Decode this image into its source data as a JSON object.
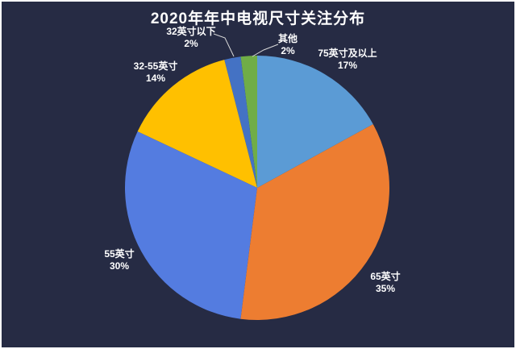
{
  "background": "#262B44",
  "frame_color": "#FFFFFF",
  "text_color": "#FFFFFF",
  "callout_color": "#D9D9D9",
  "chart_data": {
    "type": "pie",
    "title": "2020年年中电视尺寸关注分布",
    "start_angle_deg": 0,
    "direction": "clockwise",
    "legend": "none",
    "labels_position": "outside",
    "units": "percent",
    "segments": [
      {
        "label": "75英寸及以上",
        "value_pct": 17,
        "pct_label": "17%",
        "color": "#5B9BD5"
      },
      {
        "label": "65英寸",
        "value_pct": 35,
        "pct_label": "35%",
        "color": "#ED7D31"
      },
      {
        "label": "55英寸",
        "value_pct": 30,
        "pct_label": "30%",
        "color": "#547CE0"
      },
      {
        "label": "32-55英寸",
        "value_pct": 14,
        "pct_label": "14%",
        "color": "#FFC000"
      },
      {
        "label": "32英寸以下",
        "value_pct": 2,
        "pct_label": "2%",
        "color": "#4472C4"
      },
      {
        "label": "其他",
        "value_pct": 2,
        "pct_label": "2%",
        "color": "#70AD47"
      }
    ]
  }
}
